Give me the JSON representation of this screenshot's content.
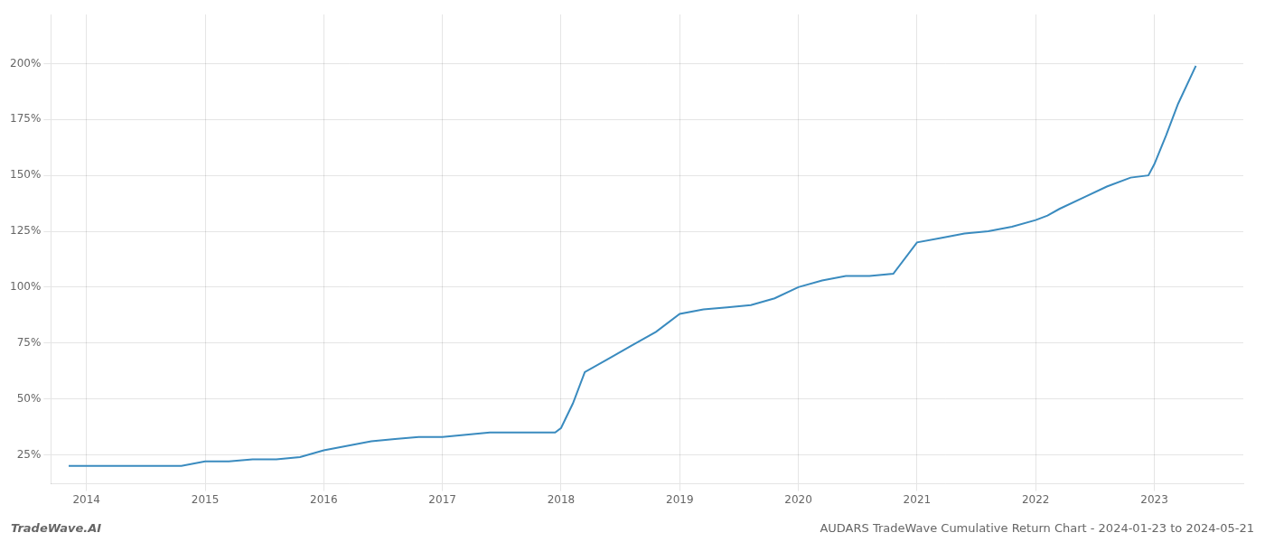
{
  "chart_data": {
    "type": "line",
    "title": "AUDARS TradeWave Cumulative Return Chart - 2024-01-23 to 2024-05-21",
    "annotations": [
      "TradeWave.AI"
    ],
    "x": [
      2013.85,
      2014.0,
      2014.1,
      2014.2,
      2014.4,
      2014.6,
      2014.8,
      2015.0,
      2015.2,
      2015.4,
      2015.6,
      2015.8,
      2016.0,
      2016.2,
      2016.4,
      2016.6,
      2016.8,
      2017.0,
      2017.2,
      2017.4,
      2017.6,
      2017.8,
      2017.95,
      2018.0,
      2018.1,
      2018.2,
      2018.4,
      2018.6,
      2018.8,
      2019.0,
      2019.2,
      2019.4,
      2019.6,
      2019.8,
      2020.0,
      2020.2,
      2020.4,
      2020.6,
      2020.8,
      2021.0,
      2021.2,
      2021.4,
      2021.6,
      2021.8,
      2022.0,
      2022.1,
      2022.2,
      2022.4,
      2022.6,
      2022.8,
      2022.95,
      2023.0,
      2023.1,
      2023.2,
      2023.35
    ],
    "values": [
      20,
      20,
      20,
      20,
      20,
      20,
      20,
      22,
      22,
      23,
      23,
      24,
      27,
      29,
      31,
      32,
      33,
      33,
      34,
      35,
      35,
      35,
      35,
      37,
      48,
      62,
      68,
      74,
      80,
      88,
      90,
      91,
      92,
      95,
      100,
      103,
      105,
      105,
      106,
      120,
      122,
      124,
      125,
      127,
      130,
      132,
      135,
      140,
      145,
      149,
      150,
      155,
      168,
      182,
      199
    ],
    "color": "#3a8bbf",
    "xlim": [
      2013.7,
      2023.75
    ],
    "xticks": [
      2014,
      2015,
      2016,
      2017,
      2018,
      2019,
      2020,
      2021,
      2022,
      2023
    ],
    "ylim": [
      12,
      222
    ],
    "yticks": [
      {
        "value": 25,
        "label": "25%"
      },
      {
        "value": 50,
        "label": "50%"
      },
      {
        "value": 75,
        "label": "75%"
      },
      {
        "value": 100,
        "label": "100%"
      },
      {
        "value": 125,
        "label": "125%"
      },
      {
        "value": 150,
        "label": "150%"
      },
      {
        "value": 175,
        "label": "175%"
      },
      {
        "value": 200,
        "label": "200%"
      }
    ],
    "grid": true
  }
}
